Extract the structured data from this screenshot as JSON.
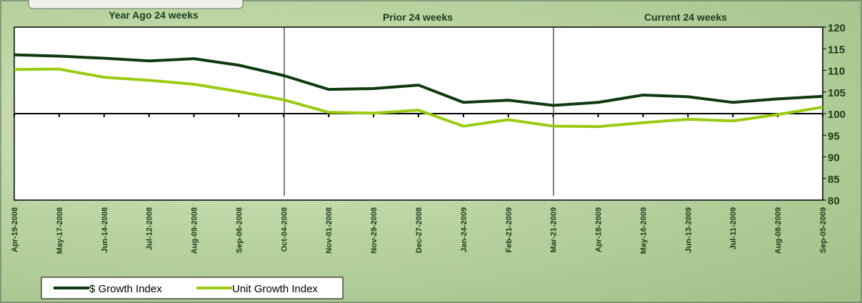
{
  "chart_data": {
    "type": "line",
    "sections": [
      "Year Ago 24 weeks",
      "Prior 24 weeks",
      "Current 24 weeks"
    ],
    "categories": [
      "Apr-19-2008",
      "May-17-2008",
      "Jun-14-2008",
      "Jul-12-2008",
      "Aug-09-2008",
      "Sep-06-2008",
      "Oct-04-2008",
      "Nov-01-2008",
      "Nov-29-2008",
      "Dec-27-2008",
      "Jan-24-2009",
      "Feb-21-2009",
      "Mar-21-2009",
      "Apr-18-2009",
      "May-16-2009",
      "Jun-13-2009",
      "Jul-11-2009",
      "Aug-08-2009",
      "Sep-05-2009"
    ],
    "series": [
      {
        "name": "$ Growth Index",
        "color": "#0f3a0f",
        "values": [
          113.6,
          113.3,
          112.8,
          112.2,
          112.7,
          111.2,
          108.8,
          105.6,
          105.8,
          106.6,
          102.6,
          103.1,
          101.9,
          102.6,
          104.3,
          103.9,
          102.6,
          103.4,
          104.0
        ]
      },
      {
        "name": "Unit Growth Index",
        "color": "#99cc11",
        "values": [
          110.2,
          110.3,
          108.4,
          107.7,
          106.8,
          105.1,
          103.2,
          100.3,
          100.1,
          100.8,
          97.1,
          98.6,
          97.1,
          97.0,
          97.9,
          98.7,
          98.3,
          99.8,
          101.5
        ]
      }
    ],
    "baseline": 100,
    "ylim": [
      80,
      120
    ],
    "yticks": [
      80,
      85,
      90,
      95,
      100,
      105,
      110,
      115,
      120
    ]
  }
}
